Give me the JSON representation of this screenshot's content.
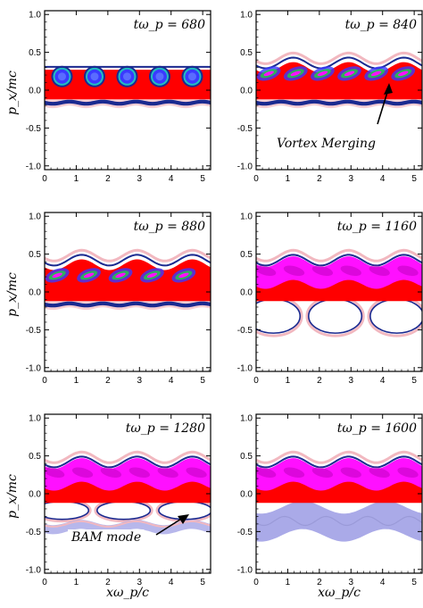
{
  "figure": {
    "ylabel": "p_x/mc",
    "xlabel": "xω_p/c",
    "xticks": [
      "0",
      "1",
      "2",
      "3",
      "4",
      "5"
    ],
    "yticks": [
      "1.0",
      "0.5",
      "0.0",
      "-0.5",
      "-1.0"
    ],
    "colors": {
      "bulk": "#ff0000",
      "vortex_magenta": "#ff10ff",
      "vortex_core_blue": "#3a3aff",
      "beam_edge_navy": "#1a2a90",
      "halo_pink": "#f2b8c0",
      "cyan": "#20c0c0",
      "green": "#20d040",
      "lavender": "#aaaae8"
    },
    "panels": [
      {
        "time_label": "tω_p = 680",
        "stage": "vortices",
        "annotation": ""
      },
      {
        "time_label": "tω_p = 840",
        "stage": "merging",
        "annotation": "Vortex Merging"
      },
      {
        "time_label": "tω_p = 880",
        "stage": "merged",
        "annotation": ""
      },
      {
        "time_label": "tω_p = 1160",
        "stage": "trapped-lower",
        "annotation": ""
      },
      {
        "time_label": "tω_p = 1280",
        "stage": "bam",
        "annotation": "BAM mode"
      },
      {
        "time_label": "tω_p = 1600",
        "stage": "lower-filled",
        "annotation": ""
      }
    ]
  }
}
